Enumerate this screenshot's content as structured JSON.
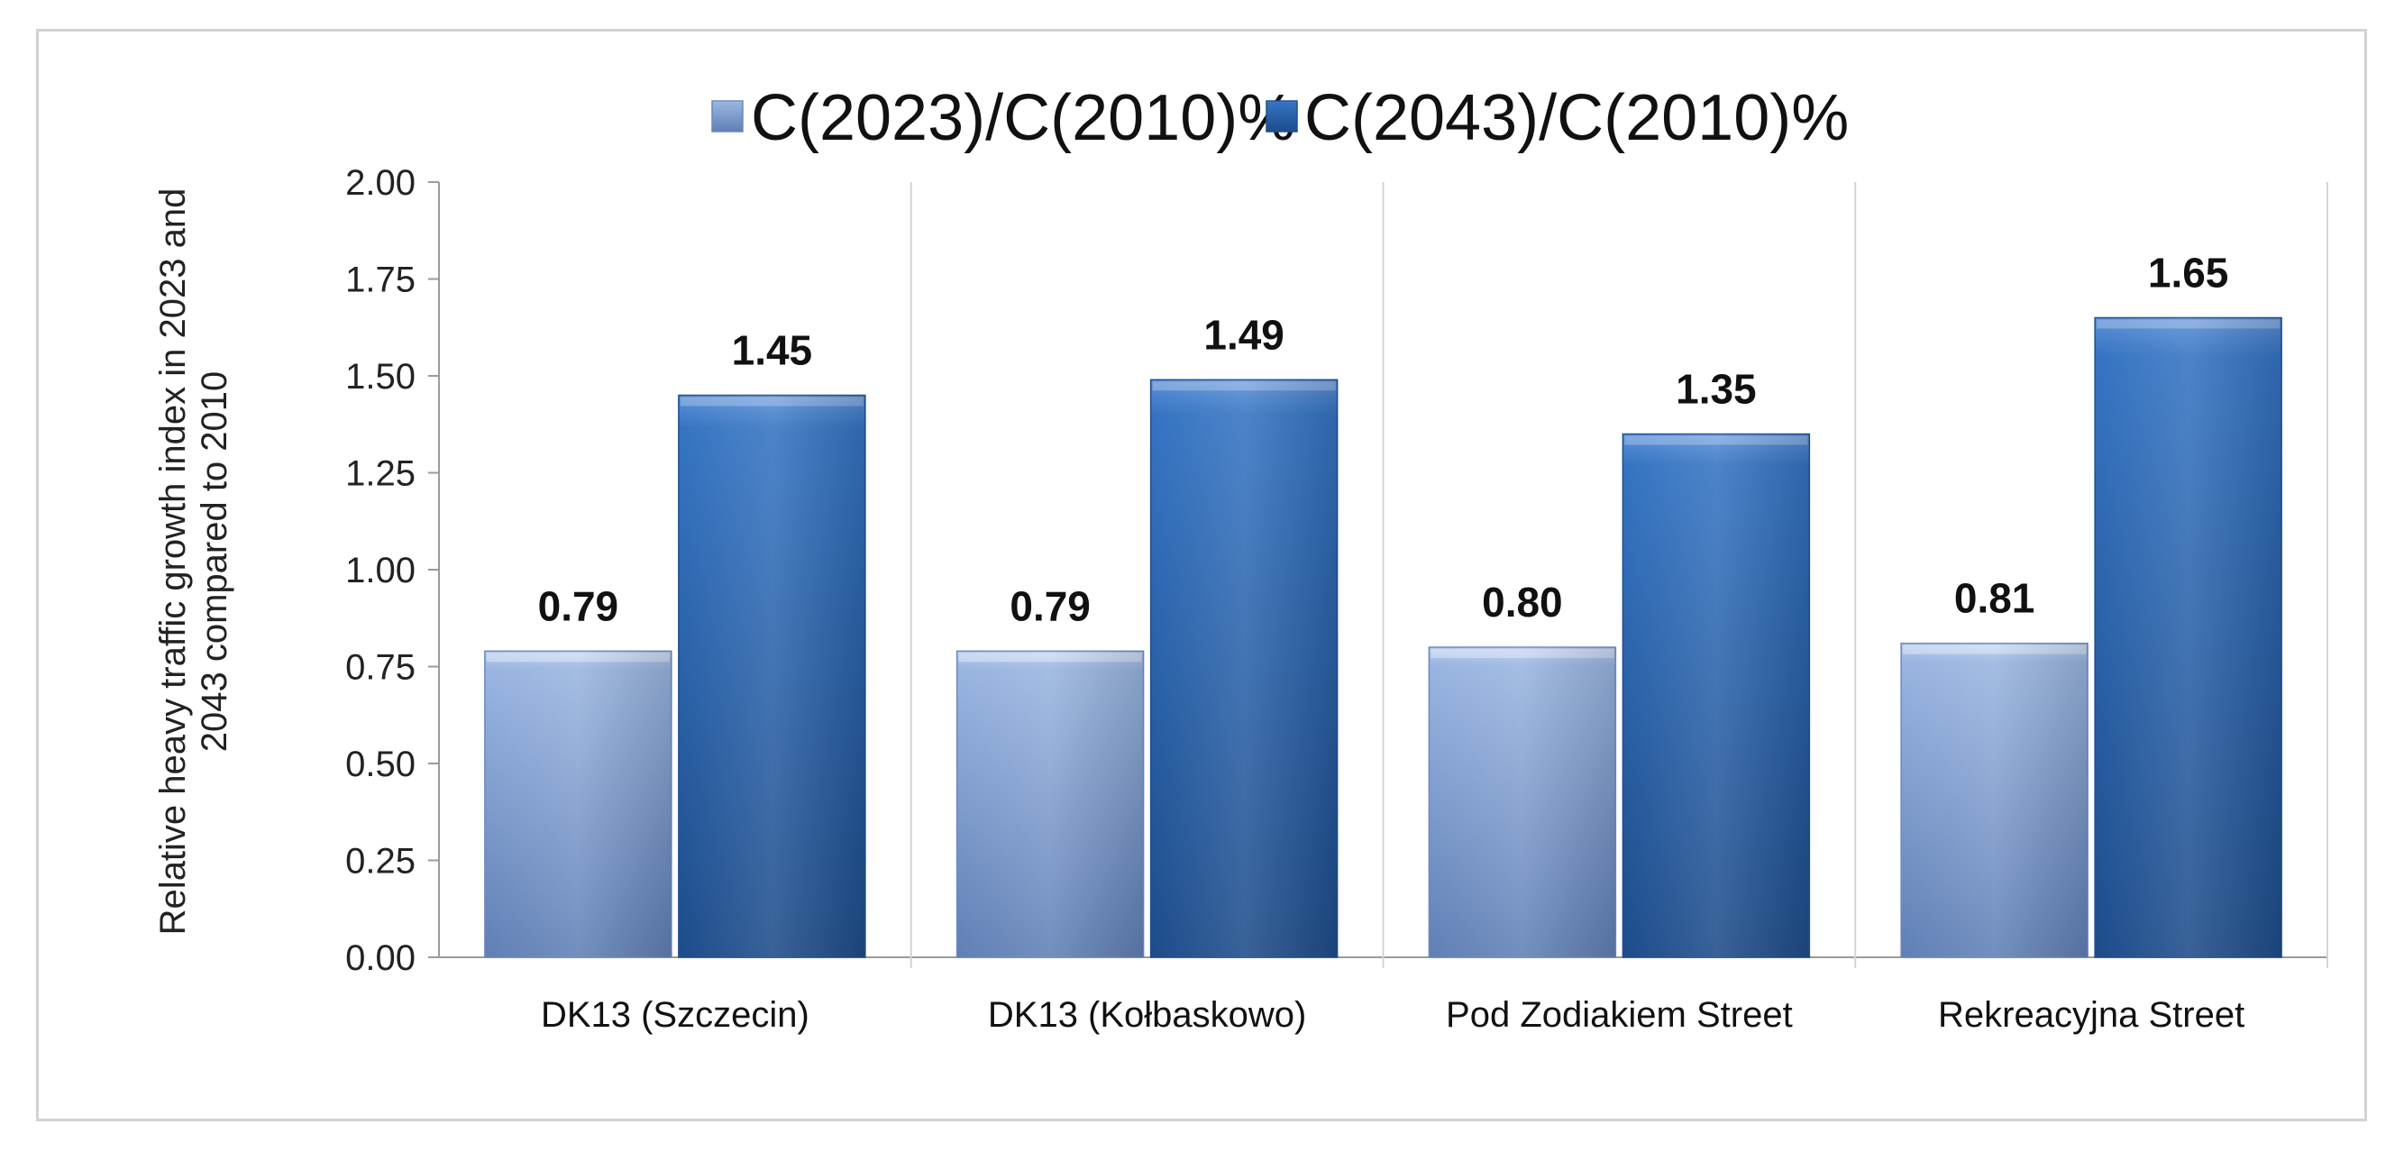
{
  "chart_data": {
    "type": "bar",
    "categories": [
      "DK13 (Szczecin)",
      "DK13 (Kołbaskowo)",
      "Pod Zodiakiem Street",
      "Rekreacyjna Street"
    ],
    "series": [
      {
        "name": "C(2023)/C(2010)%",
        "values": [
          0.79,
          0.79,
          0.8,
          0.81
        ],
        "labels": [
          "0.79",
          "0.79",
          "0.80",
          "0.81"
        ],
        "color": "#8aa8d8"
      },
      {
        "name": "C(2043)/C(2010)%",
        "values": [
          1.45,
          1.49,
          1.35,
          1.65
        ],
        "labels": [
          "1.45",
          "1.49",
          "1.35",
          "1.65"
        ],
        "color": "#2d67b3"
      }
    ],
    "ylabel_lines": [
      "Relative heavy traffic  growth index in 2023 and",
      "2043 compared to 2010"
    ],
    "ylim": [
      0,
      2.0
    ],
    "yticks": [
      "0.00",
      "0.25",
      "0.50",
      "0.75",
      "1.00",
      "1.25",
      "1.50",
      "1.75",
      "2.00"
    ],
    "grid": "vertical separators between categories",
    "legend_position": "top"
  }
}
